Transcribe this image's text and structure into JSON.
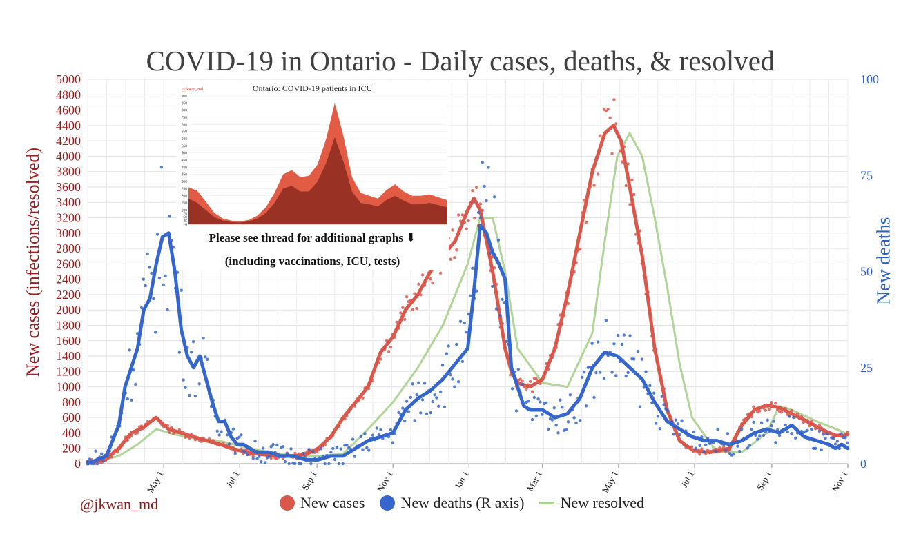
{
  "chart_data": {
    "type": "line",
    "title": "COVID-19 in Ontario - Daily cases, deaths, & resolved",
    "ylabel_left": "New cases (infections/resolved)",
    "ylabel_right": "New deaths",
    "ylim_left": [
      0,
      5000
    ],
    "ylim_right": [
      0,
      100
    ],
    "left_ticks": [
      0,
      200,
      400,
      600,
      800,
      1000,
      1200,
      1400,
      1600,
      1800,
      2000,
      2200,
      2400,
      2600,
      2800,
      3000,
      3200,
      3400,
      3600,
      3800,
      4000,
      4200,
      4400,
      4600,
      4800,
      5000
    ],
    "right_ticks": [
      0,
      25,
      50,
      75,
      100
    ],
    "x_ticks": [
      "May 1",
      "Jul 1",
      "Sep 1",
      "Nov 1",
      "Jan 1",
      "Mar 1",
      "May 1",
      "Jul 1",
      "Sep 1",
      "Nov 1"
    ],
    "x_tick_days": [
      61,
      122,
      184,
      245,
      306,
      365,
      426,
      487,
      549,
      610
    ],
    "xlim_days": [
      0,
      610
    ],
    "grid": true,
    "legend_position": "bottom",
    "colors": {
      "cases": "#d9574b",
      "deaths": "#3466cc",
      "resolved": "#a8d08d"
    },
    "series": [
      {
        "name": "New cases",
        "axis": "left",
        "kind": "line+dots",
        "x": [
          0,
          15,
          25,
          35,
          45,
          50,
          55,
          60,
          65,
          75,
          85,
          95,
          105,
          115,
          125,
          135,
          145,
          155,
          165,
          175,
          185,
          195,
          205,
          215,
          225,
          235,
          245,
          255,
          265,
          275,
          285,
          295,
          305,
          310,
          315,
          320,
          325,
          330,
          335,
          340,
          345,
          355,
          365,
          375,
          385,
          395,
          405,
          415,
          422,
          428,
          435,
          445,
          455,
          465,
          475,
          485,
          495,
          505,
          515,
          525,
          535,
          545,
          555,
          565,
          575,
          585,
          595,
          600,
          605,
          610
        ],
        "y": [
          10,
          60,
          200,
          400,
          470,
          540,
          600,
          520,
          450,
          400,
          350,
          300,
          260,
          200,
          160,
          130,
          110,
          100,
          100,
          120,
          200,
          350,
          600,
          800,
          1000,
          1450,
          1650,
          2000,
          2200,
          2500,
          2700,
          2900,
          3300,
          3450,
          3300,
          2900,
          2500,
          2000,
          1500,
          1200,
          1050,
          1000,
          1100,
          1500,
          2200,
          3000,
          3800,
          4300,
          4400,
          4200,
          3600,
          2700,
          1500,
          700,
          300,
          180,
          150,
          160,
          200,
          500,
          700,
          760,
          730,
          650,
          570,
          480,
          400,
          370,
          360,
          380
        ]
      },
      {
        "name": "New deaths (R axis)",
        "axis": "right",
        "kind": "line+dots",
        "x": [
          0,
          15,
          25,
          30,
          35,
          40,
          45,
          50,
          55,
          60,
          65,
          70,
          75,
          80,
          85,
          90,
          95,
          100,
          105,
          110,
          115,
          120,
          125,
          135,
          145,
          155,
          165,
          175,
          185,
          195,
          205,
          215,
          225,
          235,
          245,
          255,
          265,
          275,
          285,
          295,
          305,
          310,
          315,
          320,
          325,
          330,
          335,
          340,
          345,
          350,
          355,
          365,
          375,
          385,
          395,
          405,
          415,
          425,
          435,
          445,
          455,
          465,
          475,
          485,
          495,
          505,
          515,
          525,
          535,
          545,
          555,
          565,
          575,
          585,
          595,
          600,
          605,
          610
        ],
        "y": [
          0,
          2,
          10,
          20,
          25,
          30,
          40,
          43,
          52,
          59,
          60,
          50,
          35,
          28,
          25,
          28,
          22,
          16,
          11,
          11,
          7,
          5,
          5,
          3,
          3,
          2,
          2,
          1,
          1,
          2,
          2,
          4,
          6,
          7,
          8,
          14,
          17,
          19,
          22,
          26,
          30,
          45,
          62,
          60,
          55,
          52,
          48,
          25,
          20,
          15,
          14,
          14,
          12,
          13,
          17,
          25,
          29,
          28,
          25,
          22,
          16,
          11,
          9,
          7,
          6,
          6,
          5,
          6,
          8,
          9,
          8,
          10,
          7,
          6,
          5,
          4,
          5,
          4
        ]
      },
      {
        "name": "New resolved",
        "axis": "left",
        "kind": "line",
        "x": [
          0,
          25,
          40,
          55,
          70,
          85,
          105,
          125,
          145,
          165,
          185,
          205,
          225,
          245,
          265,
          285,
          305,
          315,
          325,
          335,
          345,
          365,
          385,
          405,
          415,
          425,
          435,
          445,
          455,
          465,
          475,
          485,
          505,
          525,
          545,
          555,
          565,
          585,
          605,
          610
        ],
        "y": [
          0,
          100,
          250,
          450,
          380,
          330,
          300,
          220,
          150,
          110,
          100,
          130,
          450,
          800,
          1250,
          1800,
          2600,
          3200,
          3200,
          2500,
          1500,
          1050,
          1000,
          1700,
          2900,
          4000,
          4300,
          4000,
          3200,
          2300,
          1300,
          600,
          150,
          150,
          400,
          750,
          700,
          550,
          420,
          380
        ]
      }
    ]
  },
  "labels": {
    "handle": "@jkwan_md"
  },
  "inset": {
    "title": "Ontario: COVID-19 patients in ICU",
    "handle": "@jkwan_md",
    "note1": "Please see thread for additional graphs ⬇",
    "note2": "(including vaccinations, ICU, tests)",
    "y_ticks": [
      0,
      25,
      50,
      75,
      100,
      150,
      200,
      250,
      300,
      350,
      400,
      450,
      500,
      550,
      600,
      650,
      700,
      750,
      800,
      850,
      900
    ],
    "ylim": [
      0,
      900
    ],
    "x": [
      0,
      20,
      40,
      60,
      80,
      100,
      120,
      140,
      160,
      180,
      200,
      220,
      240,
      260,
      280,
      300,
      320,
      340,
      360,
      380,
      400,
      420,
      440,
      460,
      480,
      500,
      520,
      540,
      560,
      580,
      600
    ],
    "total": [
      260,
      235,
      160,
      80,
      40,
      25,
      20,
      30,
      60,
      120,
      220,
      350,
      380,
      330,
      340,
      420,
      600,
      850,
      620,
      330,
      220,
      200,
      180,
      240,
      280,
      230,
      200,
      200,
      210,
      190,
      170
    ],
    "ventilated": [
      180,
      150,
      100,
      50,
      25,
      15,
      12,
      20,
      40,
      80,
      150,
      250,
      270,
      230,
      230,
      300,
      430,
      610,
      440,
      230,
      150,
      140,
      125,
      170,
      200,
      165,
      140,
      140,
      150,
      135,
      120
    ]
  }
}
